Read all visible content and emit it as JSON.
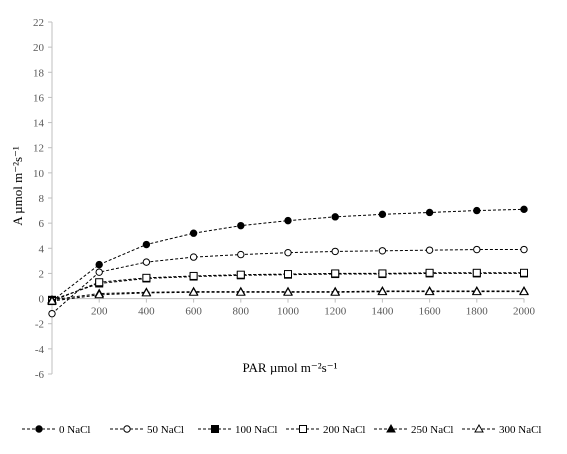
{
  "chart_data": {
    "type": "line",
    "xlabel": "PAR µmol m⁻²s⁻¹",
    "ylabel": "A µmol m⁻²s⁻¹",
    "x": [
      0,
      200,
      400,
      600,
      800,
      1000,
      1200,
      1400,
      1600,
      1800,
      2000
    ],
    "xlim": [
      0,
      2000
    ],
    "ylim": [
      -6,
      22
    ],
    "xticks": [
      "200",
      "400",
      "600",
      "800",
      "1000",
      "1200",
      "1400",
      "1600",
      "1800",
      "2000"
    ],
    "yticks": [
      "-6",
      "-4",
      "-2",
      "0",
      "2",
      "4",
      "6",
      "8",
      "10",
      "12",
      "14",
      "16",
      "18",
      "20",
      "22"
    ],
    "grid": false,
    "legend_position": "bottom",
    "series": [
      {
        "name": "0 NaCl",
        "marker": "circle-filled",
        "values": [
          -0.2,
          2.7,
          4.3,
          5.2,
          5.8,
          6.2,
          6.5,
          6.7,
          6.85,
          7.0,
          7.1
        ]
      },
      {
        "name": "50 NaCl",
        "marker": "circle-open",
        "values": [
          -1.2,
          2.1,
          2.9,
          3.3,
          3.5,
          3.65,
          3.75,
          3.8,
          3.85,
          3.9,
          3.9
        ]
      },
      {
        "name": "100 NaCl",
        "marker": "square-filled",
        "values": [
          -0.1,
          1.2,
          1.6,
          1.75,
          1.85,
          1.9,
          1.95,
          1.95,
          2.0,
          2.0,
          2.0
        ]
      },
      {
        "name": "200 NaCl",
        "marker": "square-open",
        "values": [
          -0.2,
          1.3,
          1.65,
          1.8,
          1.9,
          1.95,
          2.0,
          2.0,
          2.05,
          2.05,
          2.05
        ]
      },
      {
        "name": "250 NaCl",
        "marker": "triangle-filled",
        "values": [
          -0.1,
          0.4,
          0.5,
          0.55,
          0.55,
          0.55,
          0.55,
          0.6,
          0.6,
          0.6,
          0.6
        ]
      },
      {
        "name": "300 NaCl",
        "marker": "triangle-open",
        "values": [
          -0.2,
          0.3,
          0.45,
          0.5,
          0.5,
          0.5,
          0.5,
          0.55,
          0.55,
          0.55,
          0.55
        ]
      }
    ]
  }
}
